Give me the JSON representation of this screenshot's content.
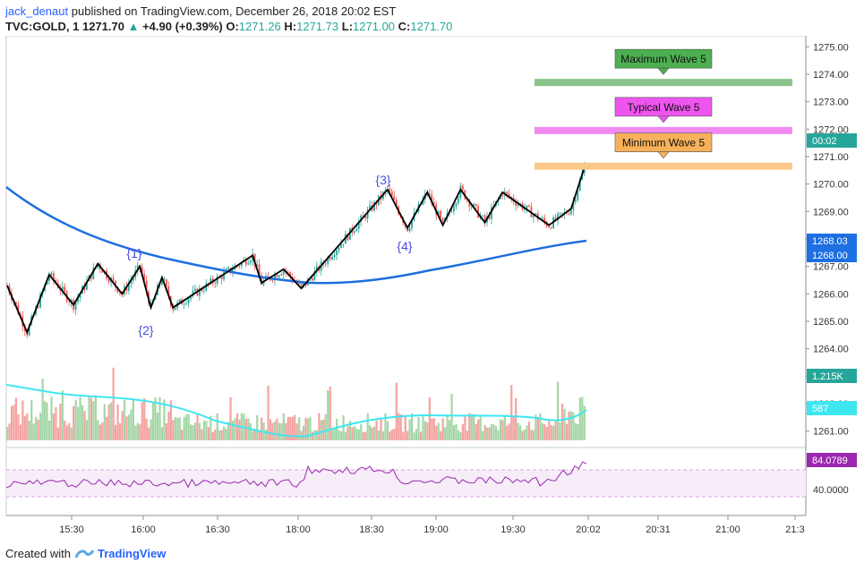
{
  "header": {
    "author": "jack_denaut",
    "published_text": "published on TradingView.com, December 26, 2018 20:02 EST",
    "symbol": "TVC:GOLD, 1",
    "last": "1271.70",
    "change": "+4.90 (+0.39%)",
    "o_label": "O:",
    "o_val": "1271.26",
    "h_label": "H:",
    "h_val": "1271.73",
    "l_label": "L:",
    "l_val": "1271.00",
    "c_label": "C:",
    "c_val": "1271.70"
  },
  "footer": {
    "created_with": "Created with",
    "brand": "TradingView"
  },
  "colors": {
    "up": "#26a69a",
    "down": "#ef5350",
    "ma": "#1e6fe0",
    "vol_ma": "#3ee6f0",
    "rsi": "#9c27b0",
    "wave_line": "#000000"
  },
  "chart_data": {
    "type": "candlestick",
    "price_axis": {
      "min": 1260.6,
      "max": 1275.4,
      "ticks": [
        1261.0,
        1262.0,
        1263.0,
        1264.0,
        1265.0,
        1266.0,
        1267.0,
        1268.0,
        1269.0,
        1270.0,
        1271.0,
        1272.0,
        1273.0,
        1274.0,
        1275.0
      ]
    },
    "time_axis": {
      "ticks": [
        "15:30",
        "16:00",
        "16:30",
        "18:00",
        "18:30",
        "19:00",
        "19:30",
        "20:02",
        "20:31",
        "21:00",
        "21:3"
      ]
    },
    "price_tags": [
      {
        "label": "00:02",
        "value": 1271.7,
        "color": "#26a69a"
      },
      {
        "label": "1268.03",
        "value": 1268.03,
        "color": "#1e6fe0"
      },
      {
        "label": "1268.00",
        "value": 1268.0,
        "color": "#1e6fe0"
      },
      {
        "label": "1.215K",
        "color": "#26a69a"
      },
      {
        "label": "587",
        "color": "#3ee6f0"
      },
      {
        "label": "84.0789",
        "color": "#9c27b0"
      }
    ],
    "rsi_axis": {
      "ticks": [
        "40.0000"
      ]
    },
    "wave_labels": [
      "{1}",
      "{2}",
      "{3}",
      "{4}"
    ],
    "wave_points": [
      [
        0,
        1266.3
      ],
      [
        9,
        1264.6
      ],
      [
        19,
        1266.7
      ],
      [
        30,
        1265.6
      ],
      [
        41,
        1267.1
      ],
      [
        52,
        1266.0
      ],
      [
        60,
        1267.0
      ],
      [
        65,
        1265.5
      ],
      [
        70,
        1266.6
      ],
      [
        75,
        1265.5
      ],
      [
        111,
        1267.4
      ],
      [
        115,
        1266.4
      ],
      [
        125,
        1266.9
      ],
      [
        133,
        1266.2
      ],
      [
        172,
        1269.8
      ],
      [
        181,
        1268.4
      ],
      [
        190,
        1269.7
      ],
      [
        197,
        1268.5
      ],
      [
        205,
        1269.8
      ],
      [
        216,
        1268.6
      ],
      [
        224,
        1269.7
      ],
      [
        245,
        1268.5
      ],
      [
        255,
        1269.1
      ],
      [
        261,
        1270.6
      ]
    ],
    "target_zones": [
      {
        "label": "Maximum Wave 5",
        "price": 1273.7,
        "color": "#8bc48b",
        "label_bg": "#4caf50"
      },
      {
        "label": "Typical Wave 5",
        "price": 1271.95,
        "color": "#f08af0",
        "label_bg": "#ee55ee"
      },
      {
        "label": "Minimum Wave 5",
        "price": 1270.65,
        "color": "#f9c98a",
        "label_bg": "#f7b15a"
      }
    ]
  }
}
